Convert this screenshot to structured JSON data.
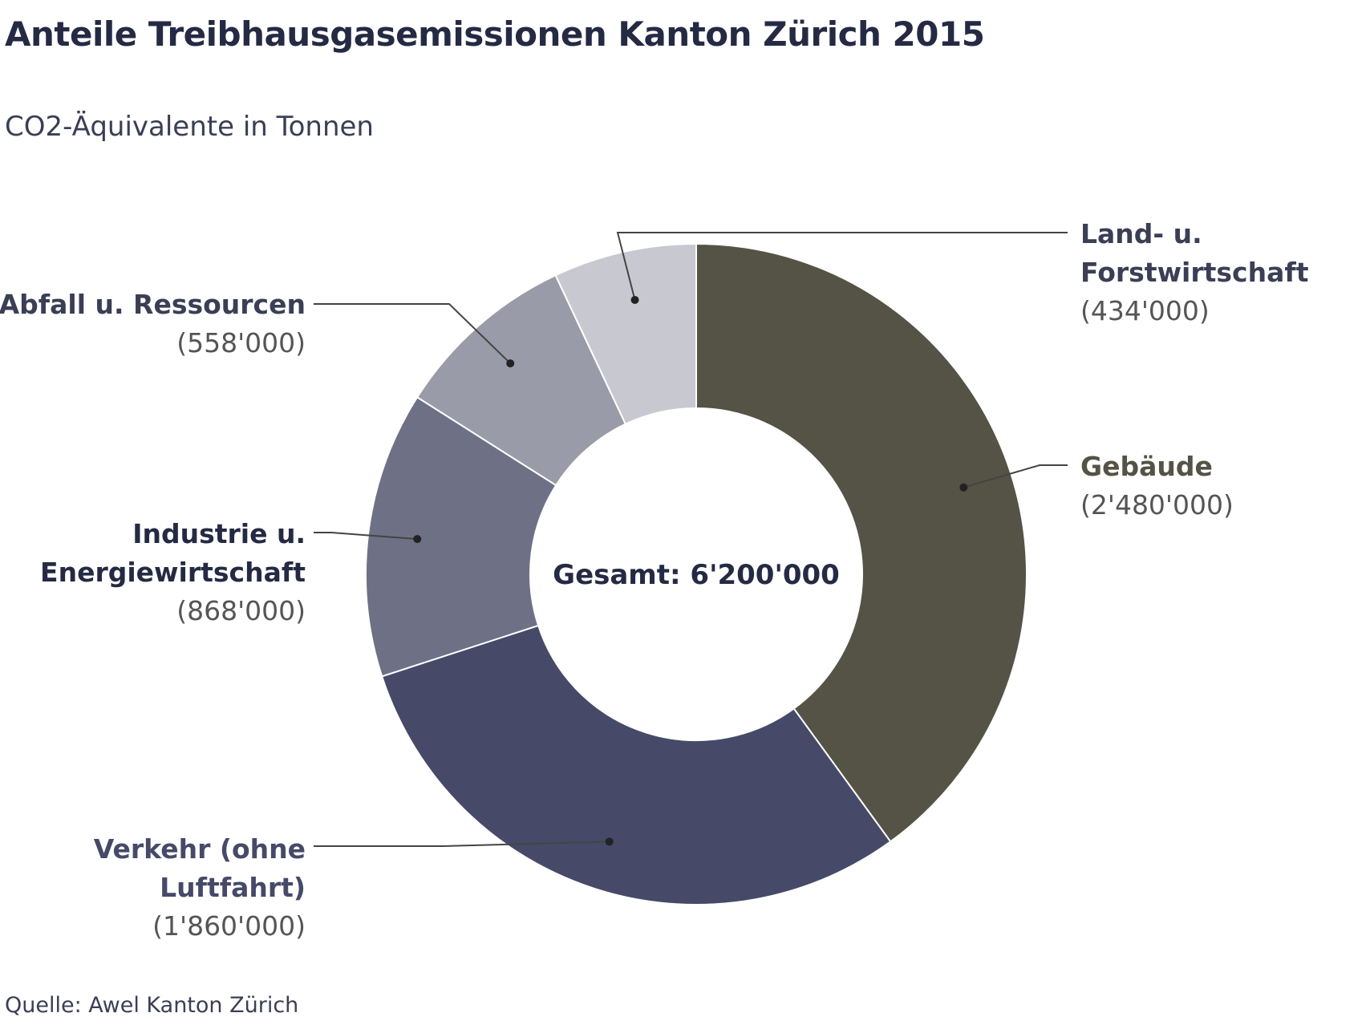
{
  "title": "Anteile Treibhausgasemissionen Kanton Zürich 2015",
  "subtitle": "CO2-Äquivalente in Tonnen",
  "source": "Quelle: Awel Kanton Zürich",
  "chart_data": {
    "type": "pie",
    "donut": true,
    "center_label": "Gesamt: 6'200'000",
    "slices": [
      {
        "name_lines": [
          "Gebäude"
        ],
        "value": 2480000,
        "value_label": "(2'480'000)",
        "color": "#555246"
      },
      {
        "name_lines": [
          "Verkehr (ohne",
          "Luftfahrt)"
        ],
        "value": 1860000,
        "value_label": "(1'860'000)",
        "color": "#464a68"
      },
      {
        "name_lines": [
          "Industrie u.",
          "Energiewirtschaft"
        ],
        "value": 868000,
        "value_label": "(868'000)",
        "color": "#6e7186"
      },
      {
        "name_lines": [
          "Abfall u. Ressourcen"
        ],
        "value": 558000,
        "value_label": "(558'000)",
        "color": "#9a9ba8"
      },
      {
        "name_lines": [
          "Land- u.",
          "Forstwirtschaft"
        ],
        "value": 434000,
        "value_label": "(434'000)",
        "color": "#c8c8d0"
      }
    ]
  }
}
